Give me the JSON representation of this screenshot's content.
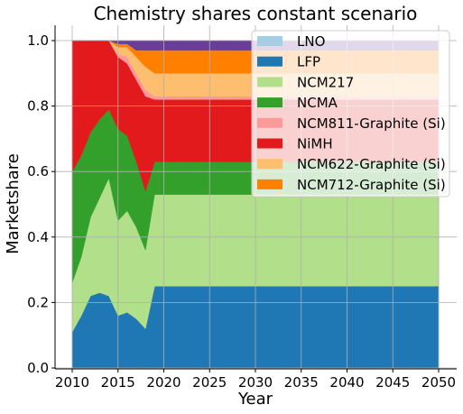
{
  "chart_data": {
    "type": "area",
    "title": "Chemistry shares constant scenario",
    "xlabel": "Year",
    "ylabel": "Marketshare",
    "xlim": [
      2010,
      2050
    ],
    "ylim": [
      0,
      1.0
    ],
    "x_ticks": [
      2010,
      2015,
      2020,
      2025,
      2030,
      2035,
      2040,
      2045,
      2050
    ],
    "y_ticks": [
      0.0,
      0.2,
      0.4,
      0.6,
      0.8,
      1.0
    ],
    "x_tick_labels": [
      "2010",
      "2015",
      "2020",
      "2025",
      "2030",
      "2035",
      "2040",
      "2045",
      "2050"
    ],
    "y_tick_labels": [
      "0.0",
      "0.2",
      "0.4",
      "0.6",
      "0.8",
      "1.0"
    ],
    "grid": true,
    "legend_position": "top-right",
    "stacked": true,
    "x": [
      2010,
      2011,
      2012,
      2013,
      2014,
      2015,
      2016,
      2017,
      2018,
      2019,
      2050
    ],
    "series": [
      {
        "name": "LFP",
        "color": "#1f78b4",
        "values": [
          0.11,
          0.16,
          0.22,
          0.23,
          0.22,
          0.16,
          0.17,
          0.15,
          0.12,
          0.25,
          0.25
        ]
      },
      {
        "name": "NCM217",
        "color": "#b2df8a",
        "values": [
          0.15,
          0.18,
          0.24,
          0.29,
          0.36,
          0.29,
          0.31,
          0.28,
          0.24,
          0.28,
          0.28
        ]
      },
      {
        "name": "NCMA",
        "color": "#33a02c",
        "values": [
          0.34,
          0.31,
          0.26,
          0.24,
          0.21,
          0.28,
          0.23,
          0.2,
          0.18,
          0.1,
          0.1
        ]
      },
      {
        "name": "NiMH",
        "color": "#e31a1c",
        "values": [
          0.4,
          0.35,
          0.28,
          0.24,
          0.21,
          0.22,
          0.22,
          0.25,
          0.29,
          0.19,
          0.19
        ]
      },
      {
        "name": "NCM811-Graphite (Si)",
        "color": "#fb9a99",
        "values": [
          0,
          0,
          0,
          0,
          0,
          0.01,
          0.02,
          0.02,
          0.02,
          0.01,
          0.01
        ]
      },
      {
        "name": "NCM622-Graphite (Si)",
        "color": "#fdbf6f",
        "values": [
          0,
          0,
          0,
          0,
          0,
          0.02,
          0.03,
          0.05,
          0.07,
          0.07,
          0.07
        ]
      },
      {
        "name": "NCM712-Graphite (Si)",
        "color": "#ff7f00",
        "values": [
          0,
          0,
          0,
          0,
          0,
          0.01,
          0.01,
          0.02,
          0.05,
          0.07,
          0.07
        ]
      },
      {
        "name": "LNO",
        "color": "#a6cee3",
        "values": [
          0,
          0,
          0,
          0,
          0,
          0,
          0,
          0,
          0,
          0,
          0
        ]
      },
      {
        "name": "",
        "color": "#6a3d9a",
        "values": [
          0,
          0,
          0,
          0,
          0,
          0.01,
          0.01,
          0.03,
          0.03,
          0.03,
          0.03
        ]
      }
    ],
    "legend_entries": [
      {
        "label": "LNO",
        "color": "#a6cee3"
      },
      {
        "label": "LFP",
        "color": "#1f78b4"
      },
      {
        "label": "NCM217",
        "color": "#b2df8a"
      },
      {
        "label": "NCMA",
        "color": "#33a02c"
      },
      {
        "label": "NCM811-Graphite (Si)",
        "color": "#fb9a99"
      },
      {
        "label": "NiMH",
        "color": "#e31a1c"
      },
      {
        "label": "NCM622-Graphite (Si)",
        "color": "#fdbf6f"
      },
      {
        "label": "NCM712-Graphite (Si)",
        "color": "#ff7f00"
      }
    ]
  }
}
